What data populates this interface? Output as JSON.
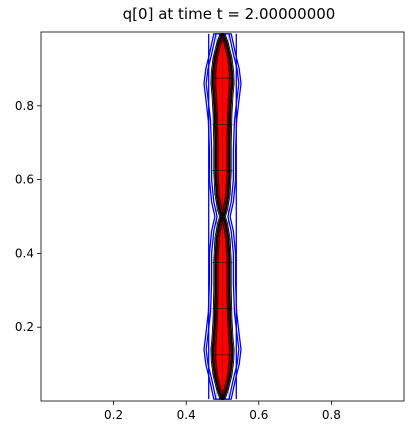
{
  "chart_data": {
    "type": "contour",
    "title": "q[0] at time t =      2.00000000",
    "xlabel": "",
    "ylabel": "",
    "xlim": [
      0.0,
      1.0
    ],
    "ylim": [
      0.0,
      1.0
    ],
    "xticks": [
      0.2,
      0.4,
      0.6,
      0.8
    ],
    "xtick_labels": [
      "0.2",
      "0.4",
      "0.6",
      "0.8"
    ],
    "yticks": [
      0.2,
      0.4,
      0.6,
      0.8
    ],
    "ytick_labels": [
      "0.2",
      "0.4",
      "0.6",
      "0.8"
    ],
    "grid": false,
    "colors": {
      "filled_region": "#ff0000",
      "outer_contour": "#0000ff",
      "inner_contour": "#000000",
      "mesh_lines": "#000000"
    },
    "filled_region_halfwidth": [
      {
        "y": 0.005,
        "w": 0.003
      },
      {
        "y": 0.03,
        "w": 0.012
      },
      {
        "y": 0.07,
        "w": 0.022
      },
      {
        "y": 0.11,
        "w": 0.027
      },
      {
        "y": 0.14,
        "w": 0.028
      },
      {
        "y": 0.17,
        "w": 0.025
      },
      {
        "y": 0.22,
        "w": 0.022
      },
      {
        "y": 0.3,
        "w": 0.02
      },
      {
        "y": 0.38,
        "w": 0.02
      },
      {
        "y": 0.44,
        "w": 0.017
      },
      {
        "y": 0.48,
        "w": 0.01
      },
      {
        "y": 0.5,
        "w": 0.004
      },
      {
        "y": 0.52,
        "w": 0.01
      },
      {
        "y": 0.56,
        "w": 0.017
      },
      {
        "y": 0.62,
        "w": 0.02
      },
      {
        "y": 0.7,
        "w": 0.02
      },
      {
        "y": 0.78,
        "w": 0.022
      },
      {
        "y": 0.83,
        "w": 0.025
      },
      {
        "y": 0.86,
        "w": 0.028
      },
      {
        "y": 0.89,
        "w": 0.027
      },
      {
        "y": 0.93,
        "w": 0.022
      },
      {
        "y": 0.97,
        "w": 0.012
      },
      {
        "y": 0.995,
        "w": 0.003
      }
    ],
    "outer_contour_halfwidth": [
      {
        "y": 0.005,
        "w": 0.018
      },
      {
        "y": 0.06,
        "w": 0.03
      },
      {
        "y": 0.1,
        "w": 0.04
      },
      {
        "y": 0.14,
        "w": 0.045
      },
      {
        "y": 0.18,
        "w": 0.04
      },
      {
        "y": 0.24,
        "w": 0.033
      },
      {
        "y": 0.32,
        "w": 0.03
      },
      {
        "y": 0.4,
        "w": 0.03
      },
      {
        "y": 0.46,
        "w": 0.024
      },
      {
        "y": 0.5,
        "w": 0.015
      },
      {
        "y": 0.54,
        "w": 0.024
      },
      {
        "y": 0.6,
        "w": 0.03
      },
      {
        "y": 0.68,
        "w": 0.03
      },
      {
        "y": 0.76,
        "w": 0.033
      },
      {
        "y": 0.82,
        "w": 0.04
      },
      {
        "y": 0.86,
        "w": 0.045
      },
      {
        "y": 0.9,
        "w": 0.04
      },
      {
        "y": 0.94,
        "w": 0.03
      },
      {
        "y": 0.995,
        "w": 0.018
      }
    ],
    "straight_outer_lines_x": [
      0.462,
      0.538
    ],
    "mesh_rows_y": [
      0.125,
      0.25,
      0.375,
      0.625,
      0.75,
      0.875
    ],
    "mesh_cols_x": [
      0.4844,
      0.5,
      0.5156
    ]
  }
}
